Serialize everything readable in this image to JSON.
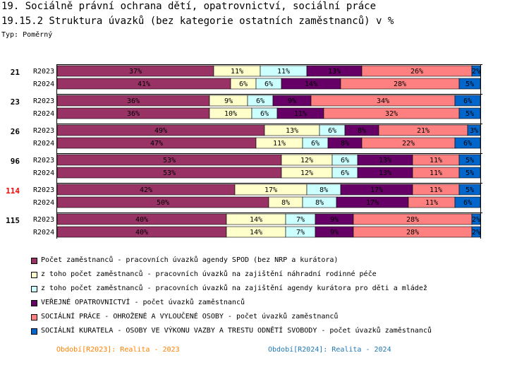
{
  "header": {
    "title_line1": "19. Sociálně právní ochrana dětí, opatrovnictví, sociální práce",
    "title_line2": "19.15.2 Struktura úvazků (bez kategorie ostatních zaměstnanců) v %",
    "type_label": "Typ: Poměrný"
  },
  "colors": {
    "highlight_group": "#ff0000",
    "period_2023": "#ff8000",
    "period_2024": "#1f77b4"
  },
  "chart_data": {
    "type": "bar",
    "stacked": true,
    "orientation": "horizontal",
    "normalized": true,
    "unit": "%",
    "series": [
      {
        "name": "Počet zaměstnanců - pracovních úvazků agendy SPOD (bez NRP a kurátora)",
        "color": "#993366"
      },
      {
        "name": "z toho počet zaměstnanců - pracovních úvazků na zajištění náhradní rodinné péče",
        "color": "#ffffcc"
      },
      {
        "name": "z toho počet zaměstnanců - pracovních úvazků na zajištění agendy kurátora pro děti a mládež",
        "color": "#ccffff"
      },
      {
        "name": "VEŘEJNÉ OPATROVNICTVÍ - počet úvazků zaměstnanců",
        "color": "#660066"
      },
      {
        "name": "SOCIÁLNÍ PRÁCE - OHROŽENÉ A VYLOUČENÉ OSOBY - počet úvazků zaměstnanců",
        "color": "#ff8080"
      },
      {
        "name": "SOCIÁLNÍ KURATELA - OSOBY VE VÝKONU VAZBY A TRESTU ODNĚTÍ SVOBODY - počet úvazků zaměstnanců",
        "color": "#0066cc"
      }
    ],
    "groups": [
      {
        "label": "21",
        "highlight": false,
        "rows": [
          {
            "label": "R2023",
            "values": [
              37,
              11,
              11,
              13,
              26,
              2
            ]
          },
          {
            "label": "R2024",
            "values": [
              41,
              6,
              6,
              14,
              28,
              5
            ]
          }
        ]
      },
      {
        "label": "23",
        "highlight": false,
        "rows": [
          {
            "label": "R2023",
            "values": [
              36,
              9,
              6,
              9,
              34,
              6
            ]
          },
          {
            "label": "R2024",
            "values": [
              36,
              10,
              6,
              11,
              32,
              5
            ]
          }
        ]
      },
      {
        "label": "26",
        "highlight": false,
        "rows": [
          {
            "label": "R2023",
            "values": [
              49,
              13,
              6,
              8,
              21,
              3
            ]
          },
          {
            "label": "R2024",
            "values": [
              47,
              11,
              6,
              8,
              22,
              6
            ]
          }
        ]
      },
      {
        "label": "96",
        "highlight": false,
        "rows": [
          {
            "label": "R2023",
            "values": [
              53,
              12,
              6,
              13,
              11,
              5
            ]
          },
          {
            "label": "R2024",
            "values": [
              53,
              12,
              6,
              13,
              11,
              5
            ]
          }
        ]
      },
      {
        "label": "114",
        "highlight": true,
        "rows": [
          {
            "label": "R2023",
            "values": [
              42,
              17,
              8,
              17,
              11,
              5
            ]
          },
          {
            "label": "R2024",
            "values": [
              50,
              8,
              8,
              17,
              11,
              6
            ]
          }
        ]
      },
      {
        "label": "115",
        "highlight": false,
        "rows": [
          {
            "label": "R2023",
            "values": [
              40,
              14,
              7,
              9,
              28,
              2
            ]
          },
          {
            "label": "R2024",
            "values": [
              40,
              14,
              7,
              9,
              28,
              2
            ]
          }
        ]
      }
    ],
    "xlim": [
      0,
      100
    ],
    "legend_position": "bottom"
  },
  "periods": {
    "p2023": "Období[R2023]: Realita - 2023",
    "p2024": "Období[R2024]: Realita - 2024"
  }
}
